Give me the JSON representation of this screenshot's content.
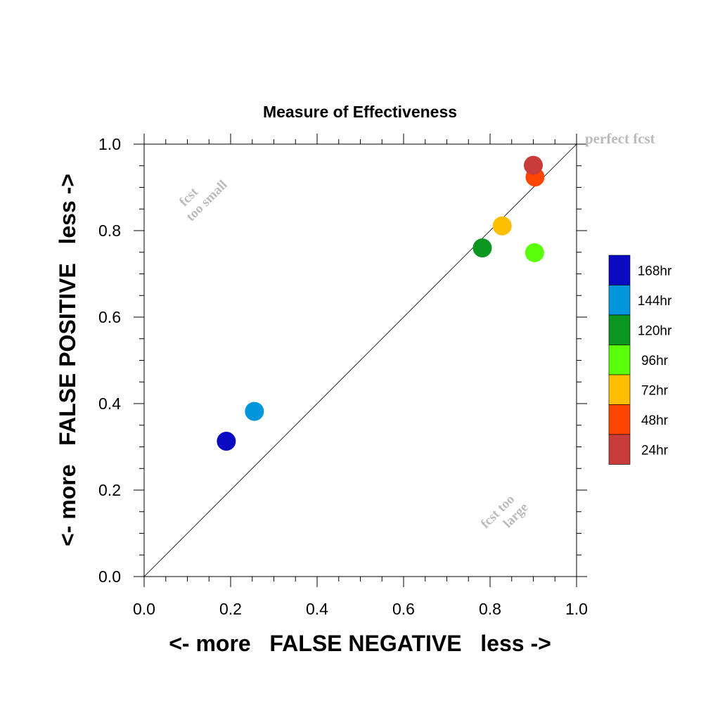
{
  "chart_data": {
    "type": "scatter",
    "title": "Measure of Effectiveness",
    "xlabel": "<- more   FALSE NEGATIVE   less ->",
    "ylabel": "<- more   FALSE POSITIVE   less ->",
    "xlim": [
      0.0,
      1.0
    ],
    "ylim": [
      0.0,
      1.0
    ],
    "x_ticks": [
      "0.0",
      "0.2",
      "0.4",
      "0.6",
      "0.8",
      "1.0"
    ],
    "y_ticks": [
      "0.0",
      "0.2",
      "0.4",
      "0.6",
      "0.8",
      "1.0"
    ],
    "grid": false,
    "reference_line": {
      "from": [
        0,
        0
      ],
      "to": [
        1,
        1
      ],
      "label": "perfect fcst"
    },
    "annotations": {
      "upper_left": [
        "fcst",
        "too small"
      ],
      "lower_right": [
        "fcst too",
        "large"
      ]
    },
    "legend_position": "right",
    "series": [
      {
        "name": "168hr",
        "color": "#0a0ac0",
        "x": 0.19,
        "y": 0.313
      },
      {
        "name": "144hr",
        "color": "#0096dc",
        "x": 0.255,
        "y": 0.382
      },
      {
        "name": "120hr",
        "color": "#0a9620",
        "x": 0.782,
        "y": 0.76
      },
      {
        "name": "96hr",
        "color": "#5aff0a",
        "x": 0.903,
        "y": 0.749
      },
      {
        "name": "72hr",
        "color": "#ffbe00",
        "x": 0.828,
        "y": 0.811
      },
      {
        "name": "48hr",
        "color": "#ff4600",
        "x": 0.904,
        "y": 0.924
      },
      {
        "name": "24hr",
        "color": "#c83c3c",
        "x": 0.9,
        "y": 0.951
      }
    ]
  }
}
